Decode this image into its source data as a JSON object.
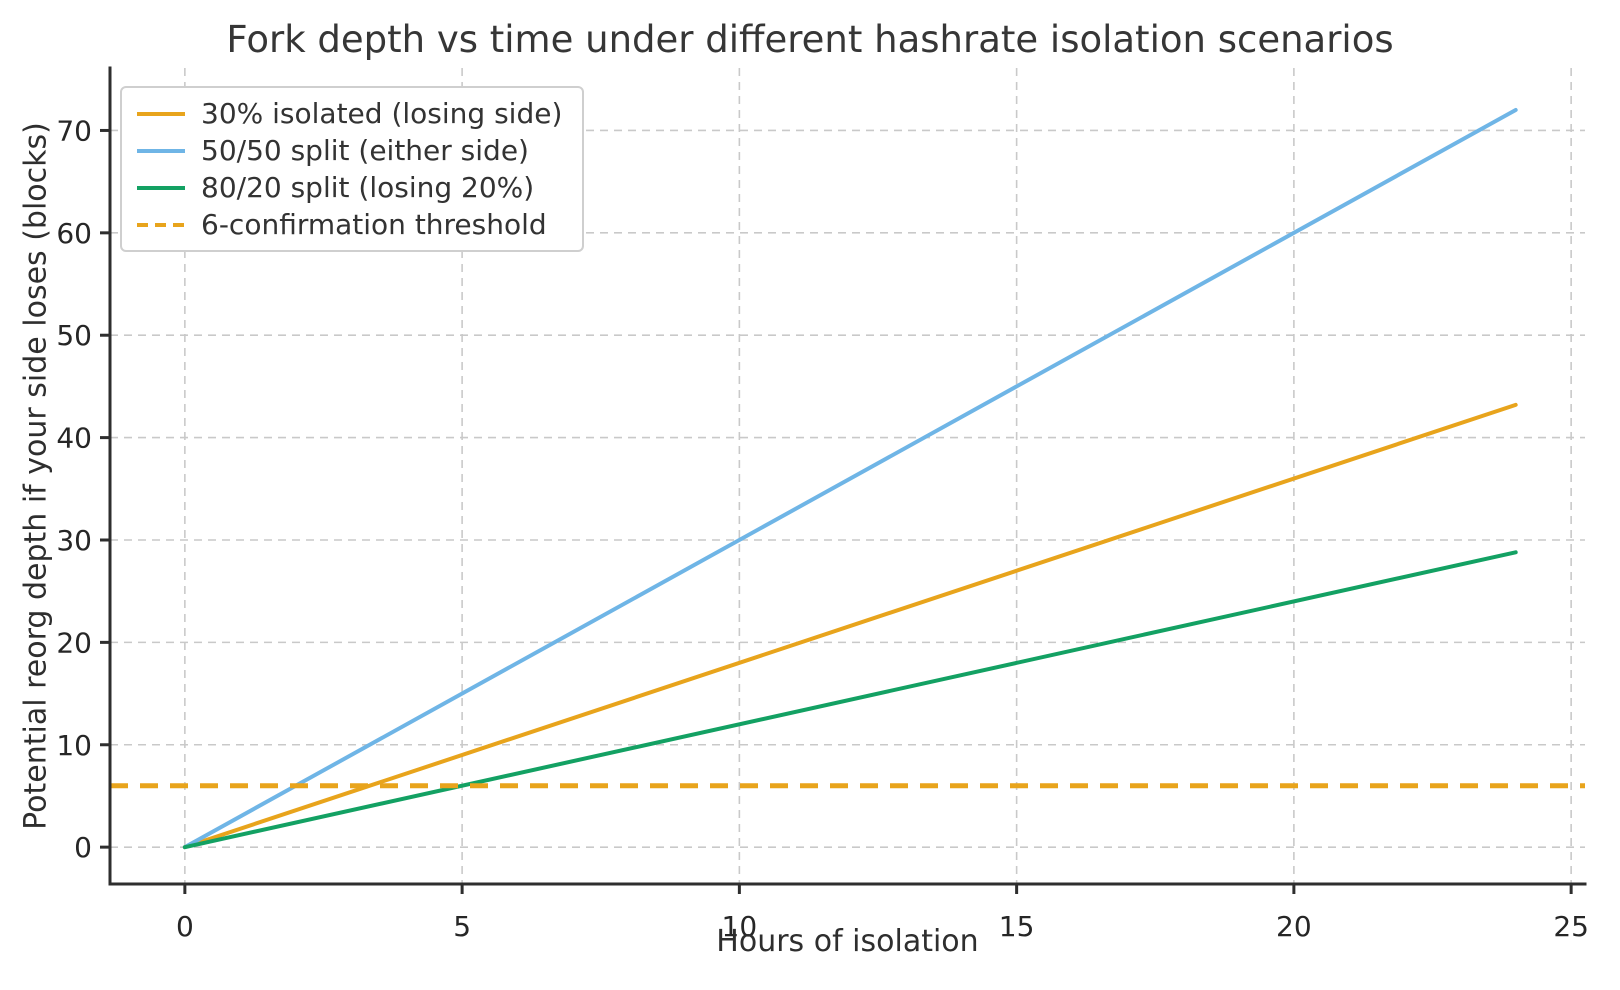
{
  "chart_data": {
    "type": "line",
    "title": "Fork depth vs time under different hashrate isolation scenarios",
    "xlabel": "Hours of isolation",
    "ylabel": "Potential reorg depth if your side loses (blocks)",
    "xlim": [
      -1.35,
      25.25
    ],
    "ylim": [
      -3.6,
      76.1
    ],
    "xticks": [
      0,
      5,
      10,
      15,
      20,
      25
    ],
    "yticks": [
      0,
      10,
      20,
      30,
      40,
      50,
      60,
      70
    ],
    "grid": true,
    "legend_position": "upper left",
    "series": [
      {
        "name": "30% isolated (losing side)",
        "color": "#E8A41C",
        "style": "solid",
        "x": [
          0,
          24
        ],
        "y": [
          0,
          43.2
        ]
      },
      {
        "name": "50/50 split (either side)",
        "color": "#6FB5E6",
        "style": "solid",
        "x": [
          0,
          24
        ],
        "y": [
          0,
          72
        ]
      },
      {
        "name": "80/20 split (losing 20%)",
        "color": "#13A163",
        "style": "solid",
        "x": [
          0,
          24
        ],
        "y": [
          0,
          28.8
        ]
      }
    ],
    "threshold": {
      "name": "6-confirmation threshold",
      "color": "#E8A41C",
      "style": "dashed",
      "y": 6
    },
    "colors": {
      "axis": "#2e2e2e",
      "grid": "#c9c9c9",
      "text": "#262626",
      "background": "#ffffff"
    }
  }
}
